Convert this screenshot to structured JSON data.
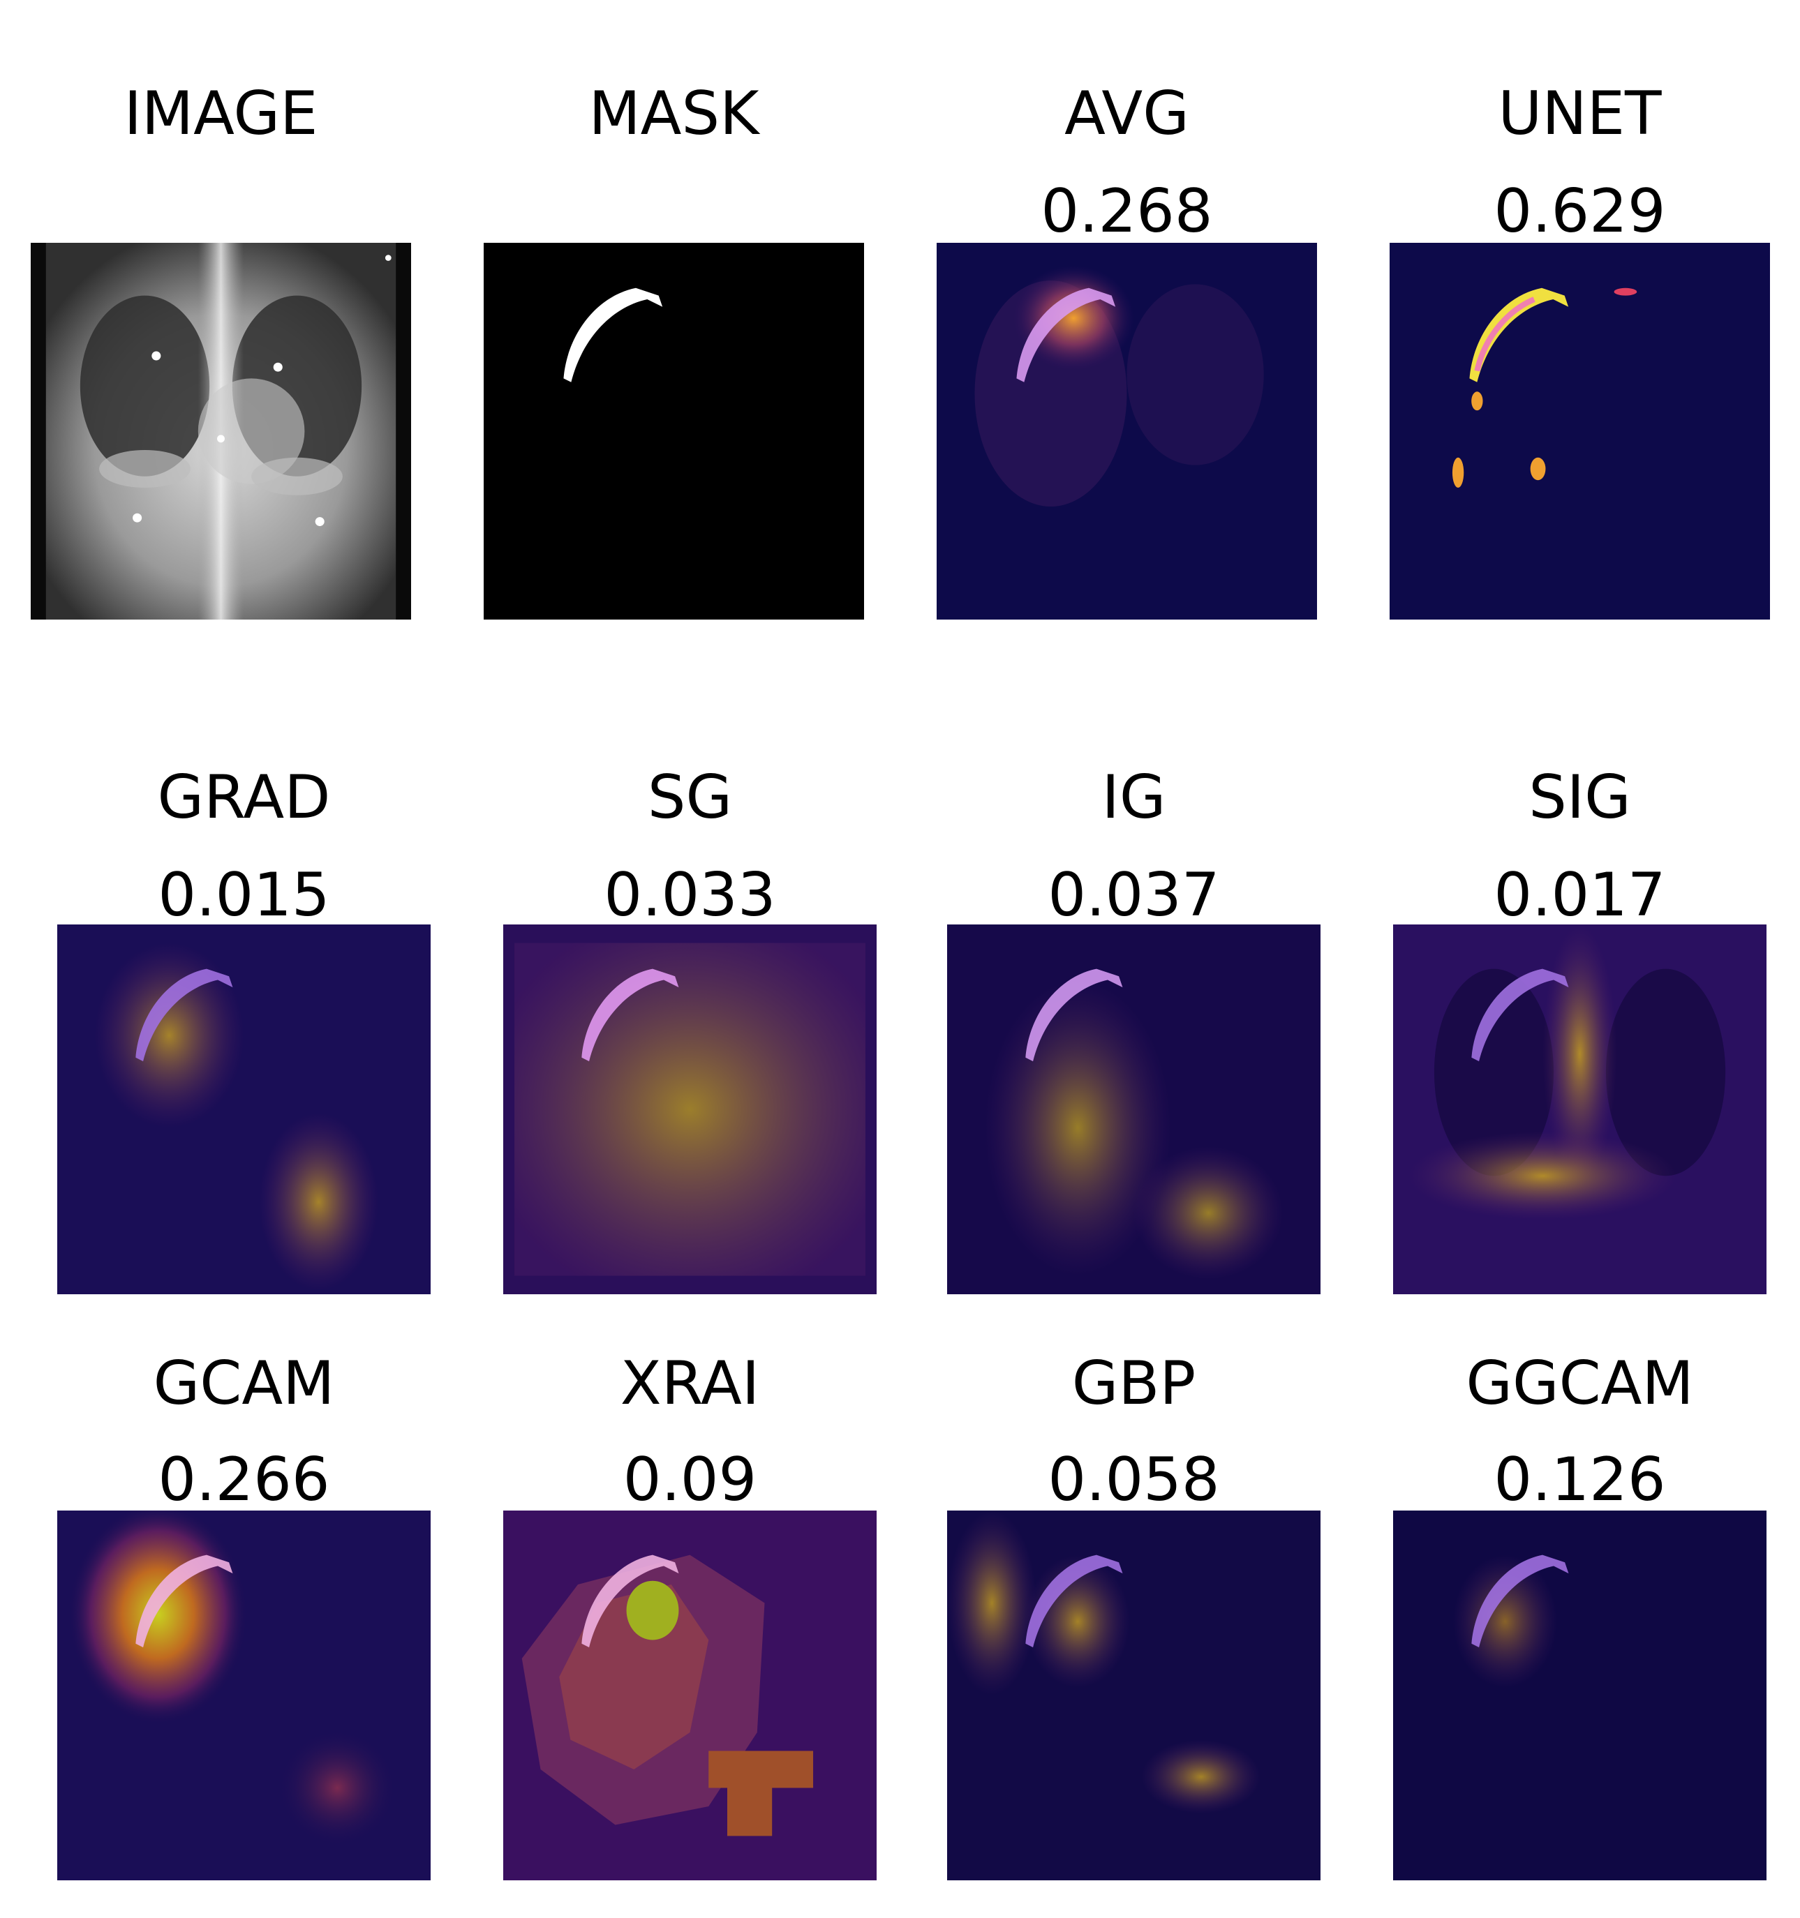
{
  "panels": [
    {
      "title": "IMAGE",
      "score": ""
    },
    {
      "title": "MASK",
      "score": ""
    },
    {
      "title": "AVG",
      "score": "0.268"
    },
    {
      "title": "UNET",
      "score": "0.629"
    },
    {
      "title": "GRAD",
      "score": "0.015"
    },
    {
      "title": "SG",
      "score": "0.033"
    },
    {
      "title": "IG",
      "score": "0.037"
    },
    {
      "title": "SIG",
      "score": "0.017"
    },
    {
      "title": "GCAM",
      "score": "0.266"
    },
    {
      "title": "XRAI",
      "score": "0.09"
    },
    {
      "title": "GBP",
      "score": "0.058"
    },
    {
      "title": "GGCAM",
      "score": "0.126"
    }
  ],
  "colors": {
    "background": "#ffffff",
    "heatmap_low": "#0d0a4a",
    "heatmap_mid": "#8a2a6a",
    "heatmap_high": "#e8e020",
    "mask_fill": "#ffffff",
    "mask_overlay": "#d89af0"
  }
}
